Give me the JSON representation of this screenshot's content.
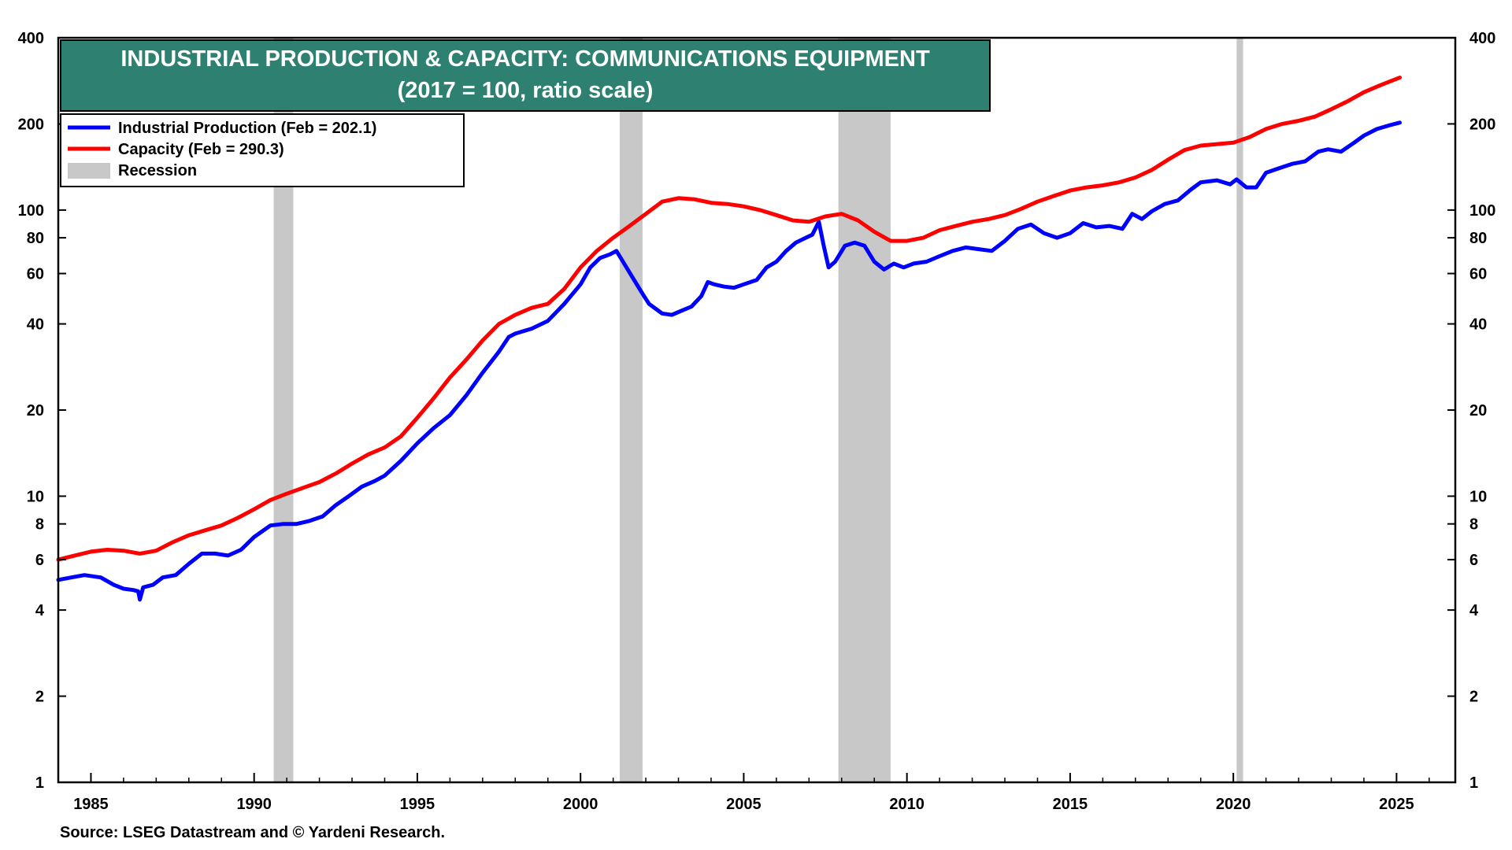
{
  "chart_data": {
    "type": "line",
    "title": "INDUSTRIAL PRODUCTION & CAPACITY: COMMUNICATIONS EQUIPMENT",
    "subtitle": "(2017 = 100, ratio scale)",
    "source": "Source: LSEG Datastream and © Yardeni Research.",
    "y_scale": "log",
    "ylim": [
      1,
      400
    ],
    "xlim": [
      1984.0,
      2026.8
    ],
    "y_ticks": [
      1,
      2,
      4,
      6,
      8,
      10,
      20,
      40,
      60,
      80,
      100,
      200,
      400
    ],
    "x_ticks": [
      1985,
      1990,
      1995,
      2000,
      2005,
      2010,
      2015,
      2020,
      2025
    ],
    "legend_position": "top-left",
    "grid": false,
    "colors": {
      "production": "#0000ff",
      "capacity": "#ff0000",
      "recession": "#c8c8c8",
      "title_bg": "#2e8070"
    },
    "legend": [
      {
        "label": "Industrial Production (Feb = 202.1)",
        "color": "#0000ff",
        "kind": "line"
      },
      {
        "label": "Capacity (Feb = 290.3)",
        "color": "#ff0000",
        "kind": "line"
      },
      {
        "label": "Recession",
        "color": "#c8c8c8",
        "kind": "box"
      }
    ],
    "recessions": [
      [
        1990.6,
        1991.2
      ],
      [
        2001.2,
        2001.9
      ],
      [
        2007.9,
        2009.5
      ],
      [
        2020.1,
        2020.3
      ]
    ],
    "series": [
      {
        "name": "Industrial Production",
        "color": "#0000ff",
        "points": [
          [
            1984.0,
            5.1
          ],
          [
            1984.4,
            5.2
          ],
          [
            1984.8,
            5.3
          ],
          [
            1985.3,
            5.2
          ],
          [
            1985.7,
            4.9
          ],
          [
            1986.0,
            4.75
          ],
          [
            1986.3,
            4.7
          ],
          [
            1986.45,
            4.65
          ],
          [
            1986.5,
            4.35
          ],
          [
            1986.6,
            4.8
          ],
          [
            1986.9,
            4.9
          ],
          [
            1987.2,
            5.2
          ],
          [
            1987.6,
            5.3
          ],
          [
            1988.0,
            5.8
          ],
          [
            1988.4,
            6.3
          ],
          [
            1988.8,
            6.3
          ],
          [
            1989.2,
            6.2
          ],
          [
            1989.6,
            6.5
          ],
          [
            1990.0,
            7.2
          ],
          [
            1990.5,
            7.9
          ],
          [
            1990.9,
            8.0
          ],
          [
            1991.3,
            8.0
          ],
          [
            1991.7,
            8.2
          ],
          [
            1992.1,
            8.5
          ],
          [
            1992.5,
            9.3
          ],
          [
            1992.9,
            10.0
          ],
          [
            1993.3,
            10.8
          ],
          [
            1993.7,
            11.3
          ],
          [
            1994.0,
            11.8
          ],
          [
            1994.5,
            13.3
          ],
          [
            1995.0,
            15.3
          ],
          [
            1995.5,
            17.3
          ],
          [
            1996.0,
            19.2
          ],
          [
            1996.5,
            22.5
          ],
          [
            1997.0,
            27.0
          ],
          [
            1997.5,
            32.0
          ],
          [
            1997.8,
            36.0
          ],
          [
            1998.0,
            37.0
          ],
          [
            1998.5,
            38.5
          ],
          [
            1999.0,
            41.0
          ],
          [
            1999.5,
            47.0
          ],
          [
            2000.0,
            55.0
          ],
          [
            2000.3,
            63.0
          ],
          [
            2000.6,
            68.0
          ],
          [
            2000.9,
            70.0
          ],
          [
            2001.1,
            72.0
          ],
          [
            2001.3,
            66.0
          ],
          [
            2001.6,
            58.0
          ],
          [
            2001.9,
            51.0
          ],
          [
            2002.1,
            47.0
          ],
          [
            2002.5,
            43.5
          ],
          [
            2002.8,
            43.0
          ],
          [
            2003.1,
            44.5
          ],
          [
            2003.4,
            46.0
          ],
          [
            2003.7,
            50.0
          ],
          [
            2003.9,
            56.0
          ],
          [
            2004.1,
            55.0
          ],
          [
            2004.4,
            54.0
          ],
          [
            2004.7,
            53.5
          ],
          [
            2005.0,
            55.0
          ],
          [
            2005.4,
            57.0
          ],
          [
            2005.7,
            63.0
          ],
          [
            2006.0,
            66.0
          ],
          [
            2006.3,
            72.0
          ],
          [
            2006.6,
            77.0
          ],
          [
            2006.9,
            80.0
          ],
          [
            2007.1,
            82.0
          ],
          [
            2007.3,
            91.0
          ],
          [
            2007.45,
            75.0
          ],
          [
            2007.6,
            63.0
          ],
          [
            2007.8,
            66.0
          ],
          [
            2008.1,
            75.0
          ],
          [
            2008.4,
            77.0
          ],
          [
            2008.7,
            75.0
          ],
          [
            2009.0,
            66.0
          ],
          [
            2009.3,
            62.0
          ],
          [
            2009.6,
            65.0
          ],
          [
            2009.9,
            63.0
          ],
          [
            2010.2,
            65.0
          ],
          [
            2010.6,
            66.0
          ],
          [
            2011.0,
            69.0
          ],
          [
            2011.4,
            72.0
          ],
          [
            2011.8,
            74.0
          ],
          [
            2012.2,
            73.0
          ],
          [
            2012.6,
            72.0
          ],
          [
            2013.0,
            78.0
          ],
          [
            2013.4,
            86.0
          ],
          [
            2013.8,
            89.0
          ],
          [
            2014.2,
            83.0
          ],
          [
            2014.6,
            80.0
          ],
          [
            2015.0,
            83.0
          ],
          [
            2015.4,
            90.0
          ],
          [
            2015.8,
            87.0
          ],
          [
            2016.2,
            88.0
          ],
          [
            2016.6,
            86.0
          ],
          [
            2016.9,
            97.0
          ],
          [
            2017.2,
            93.0
          ],
          [
            2017.5,
            99.0
          ],
          [
            2017.9,
            105.0
          ],
          [
            2018.3,
            108.0
          ],
          [
            2018.7,
            118.0
          ],
          [
            2019.0,
            125.0
          ],
          [
            2019.5,
            127.0
          ],
          [
            2019.9,
            123.0
          ],
          [
            2020.1,
            128.0
          ],
          [
            2020.4,
            120.0
          ],
          [
            2020.7,
            120.0
          ],
          [
            2021.0,
            135.0
          ],
          [
            2021.4,
            140.0
          ],
          [
            2021.8,
            145.0
          ],
          [
            2022.2,
            148.0
          ],
          [
            2022.6,
            160.0
          ],
          [
            2022.9,
            163.0
          ],
          [
            2023.3,
            160.0
          ],
          [
            2023.7,
            172.0
          ],
          [
            2024.0,
            182.0
          ],
          [
            2024.4,
            192.0
          ],
          [
            2024.8,
            198.0
          ],
          [
            2025.1,
            202.1
          ]
        ]
      },
      {
        "name": "Capacity",
        "color": "#ff0000",
        "points": [
          [
            1984.0,
            6.0
          ],
          [
            1984.5,
            6.2
          ],
          [
            1985.0,
            6.4
          ],
          [
            1985.5,
            6.5
          ],
          [
            1986.0,
            6.45
          ],
          [
            1986.5,
            6.3
          ],
          [
            1987.0,
            6.45
          ],
          [
            1987.5,
            6.9
          ],
          [
            1988.0,
            7.3
          ],
          [
            1988.5,
            7.6
          ],
          [
            1989.0,
            7.9
          ],
          [
            1989.5,
            8.4
          ],
          [
            1990.0,
            9.0
          ],
          [
            1990.5,
            9.7
          ],
          [
            1991.0,
            10.2
          ],
          [
            1991.5,
            10.7
          ],
          [
            1992.0,
            11.2
          ],
          [
            1992.5,
            12.0
          ],
          [
            1993.0,
            13.0
          ],
          [
            1993.5,
            14.0
          ],
          [
            1994.0,
            14.8
          ],
          [
            1994.5,
            16.2
          ],
          [
            1995.0,
            18.8
          ],
          [
            1995.5,
            22.0
          ],
          [
            1996.0,
            26.0
          ],
          [
            1996.5,
            30.0
          ],
          [
            1997.0,
            35.0
          ],
          [
            1997.5,
            40.0
          ],
          [
            1998.0,
            43.0
          ],
          [
            1998.5,
            45.5
          ],
          [
            1999.0,
            47.0
          ],
          [
            1999.5,
            53.0
          ],
          [
            2000.0,
            63.0
          ],
          [
            2000.5,
            72.0
          ],
          [
            2001.0,
            80.0
          ],
          [
            2001.5,
            88.0
          ],
          [
            2002.0,
            97.0
          ],
          [
            2002.5,
            107.0
          ],
          [
            2003.0,
            110.0
          ],
          [
            2003.5,
            109.0
          ],
          [
            2004.0,
            106.0
          ],
          [
            2004.5,
            105.0
          ],
          [
            2005.0,
            103.0
          ],
          [
            2005.5,
            100.0
          ],
          [
            2006.0,
            96.0
          ],
          [
            2006.5,
            92.0
          ],
          [
            2007.0,
            91.0
          ],
          [
            2007.5,
            95.0
          ],
          [
            2008.0,
            97.0
          ],
          [
            2008.5,
            92.0
          ],
          [
            2009.0,
            84.0
          ],
          [
            2009.5,
            78.0
          ],
          [
            2010.0,
            78.0
          ],
          [
            2010.5,
            80.0
          ],
          [
            2011.0,
            85.0
          ],
          [
            2011.5,
            88.0
          ],
          [
            2012.0,
            91.0
          ],
          [
            2012.5,
            93.0
          ],
          [
            2013.0,
            96.0
          ],
          [
            2013.5,
            101.0
          ],
          [
            2014.0,
            107.0
          ],
          [
            2014.5,
            112.0
          ],
          [
            2015.0,
            117.0
          ],
          [
            2015.5,
            120.0
          ],
          [
            2016.0,
            122.0
          ],
          [
            2016.5,
            125.0
          ],
          [
            2017.0,
            130.0
          ],
          [
            2017.5,
            138.0
          ],
          [
            2018.0,
            150.0
          ],
          [
            2018.5,
            162.0
          ],
          [
            2019.0,
            168.0
          ],
          [
            2019.5,
            170.0
          ],
          [
            2020.0,
            172.0
          ],
          [
            2020.5,
            180.0
          ],
          [
            2021.0,
            192.0
          ],
          [
            2021.5,
            200.0
          ],
          [
            2022.0,
            205.0
          ],
          [
            2022.5,
            212.0
          ],
          [
            2023.0,
            225.0
          ],
          [
            2023.5,
            240.0
          ],
          [
            2024.0,
            258.0
          ],
          [
            2024.5,
            273.0
          ],
          [
            2025.1,
            290.3
          ]
        ]
      }
    ]
  }
}
